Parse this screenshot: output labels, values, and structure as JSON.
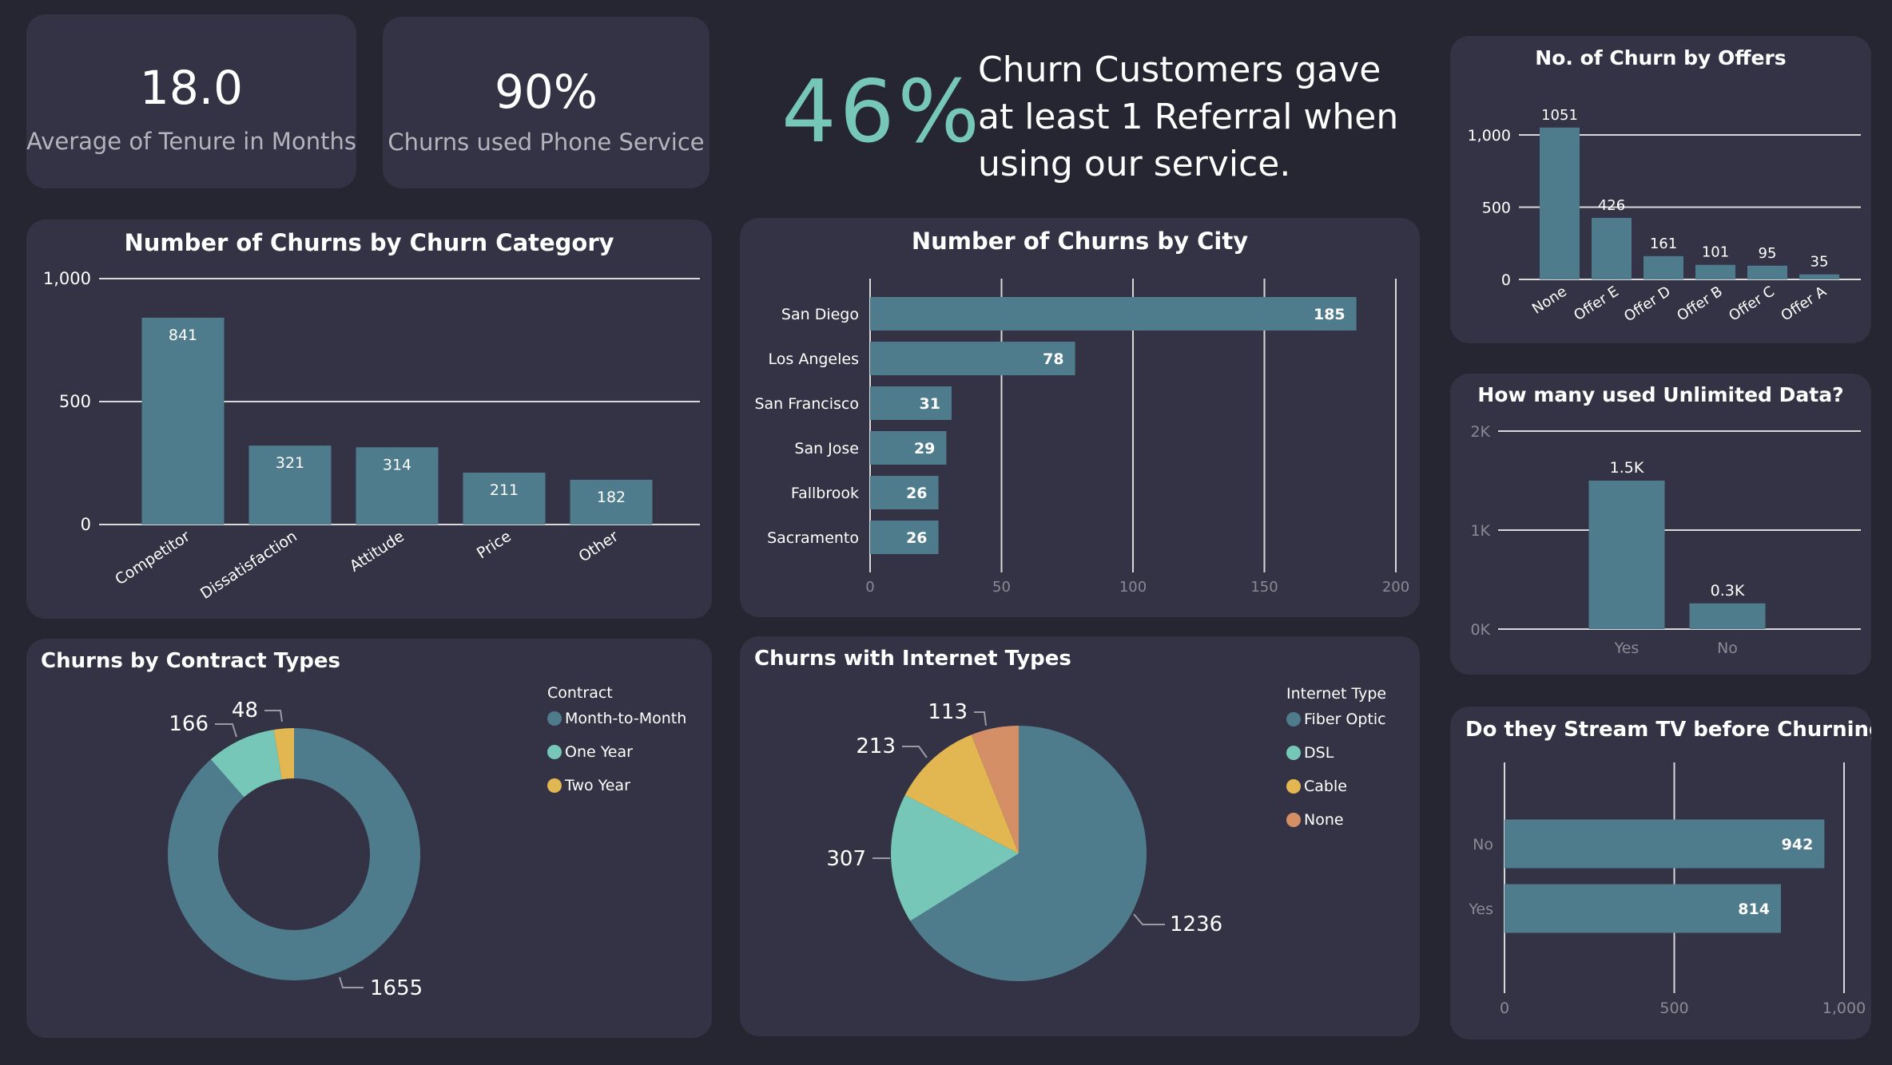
{
  "colors": {
    "background": "#262633",
    "panel": "#343346",
    "bar": "#4f7c8c",
    "mint": "#76c7b7",
    "yellow": "#e2b651",
    "orange": "#d48f66",
    "grid": "#d9d9d9",
    "muted": "#8a8a94"
  },
  "kpis": [
    {
      "value": "18.0",
      "label": "Average of Tenure in Months"
    },
    {
      "value": "90%",
      "label": "Churns used Phone Service"
    }
  ],
  "referral": {
    "value": "46%",
    "text": "Churn Customers gave at least 1 Referral when using our service."
  },
  "chart_data": [
    {
      "id": "category",
      "type": "bar",
      "title": "Number of Churns by Churn Category",
      "categories": [
        "Competitor",
        "Dissatisfaction",
        "Attitude",
        "Price",
        "Other"
      ],
      "values": [
        841,
        321,
        314,
        211,
        182
      ],
      "labels": [
        "841",
        "321",
        "314",
        "211",
        "182"
      ],
      "ylim": [
        0,
        1000
      ],
      "yticks": [
        "0",
        "500",
        "1,000"
      ],
      "grid": true
    },
    {
      "id": "city",
      "type": "bar",
      "orientation": "horizontal",
      "title": "Number of Churns by City",
      "categories": [
        "San Diego",
        "Los Angeles",
        "San Francisco",
        "San Jose",
        "Fallbrook",
        "Sacramento"
      ],
      "values": [
        185,
        78,
        31,
        29,
        26,
        26
      ],
      "labels": [
        "185",
        "78",
        "31",
        "29",
        "26",
        "26"
      ],
      "xlim": [
        0,
        200
      ],
      "xticks": [
        "0",
        "50",
        "100",
        "150",
        "200"
      ],
      "grid": true
    },
    {
      "id": "offers",
      "type": "bar",
      "title": "No. of Churn by Offers",
      "categories": [
        "None",
        "Offer E",
        "Offer D",
        "Offer B",
        "Offer C",
        "Offer A"
      ],
      "values": [
        1051,
        426,
        161,
        101,
        95,
        35
      ],
      "labels": [
        "1051",
        "426",
        "161",
        "101",
        "95",
        "35"
      ],
      "ylim": [
        0,
        1000
      ],
      "yticks": [
        "0",
        "500",
        "1,000"
      ],
      "grid": true
    },
    {
      "id": "unlimited",
      "type": "bar",
      "title": "How many used Unlimited Data?",
      "categories": [
        "Yes",
        "No"
      ],
      "values": [
        1500,
        260
      ],
      "labels": [
        "1.5K",
        "0.3K"
      ],
      "ylim": [
        0,
        2000
      ],
      "yticks": [
        "0K",
        "1K",
        "2K"
      ],
      "grid": true
    },
    {
      "id": "streamtv",
      "type": "bar",
      "orientation": "horizontal",
      "title": "Do they Stream TV before Churning?",
      "categories": [
        "No",
        "Yes"
      ],
      "values": [
        942,
        814
      ],
      "labels": [
        "942",
        "814"
      ],
      "xlim": [
        0,
        1000
      ],
      "xticks": [
        "0",
        "500",
        "1,000"
      ],
      "grid": true
    },
    {
      "id": "contract",
      "type": "pie",
      "variant": "donut",
      "title": "Churns by Contract Types",
      "legend_title": "Contract",
      "legend_position": "right",
      "categories": [
        "Month-to-Month",
        "One Year",
        "Two Year"
      ],
      "values": [
        1655,
        166,
        48
      ],
      "labels": [
        "1655",
        "166",
        "48"
      ],
      "colors": [
        "#4f7c8c",
        "#76c7b7",
        "#e2b651"
      ]
    },
    {
      "id": "internet",
      "type": "pie",
      "title": "Churns with Internet Types",
      "legend_title": "Internet Type",
      "legend_position": "right",
      "categories": [
        "Fiber Optic",
        "DSL",
        "Cable",
        "None"
      ],
      "values": [
        1236,
        307,
        213,
        113
      ],
      "labels": [
        "1236",
        "307",
        "213",
        "113"
      ],
      "colors": [
        "#4f7c8c",
        "#76c7b7",
        "#e2b651",
        "#d48f66"
      ]
    }
  ]
}
